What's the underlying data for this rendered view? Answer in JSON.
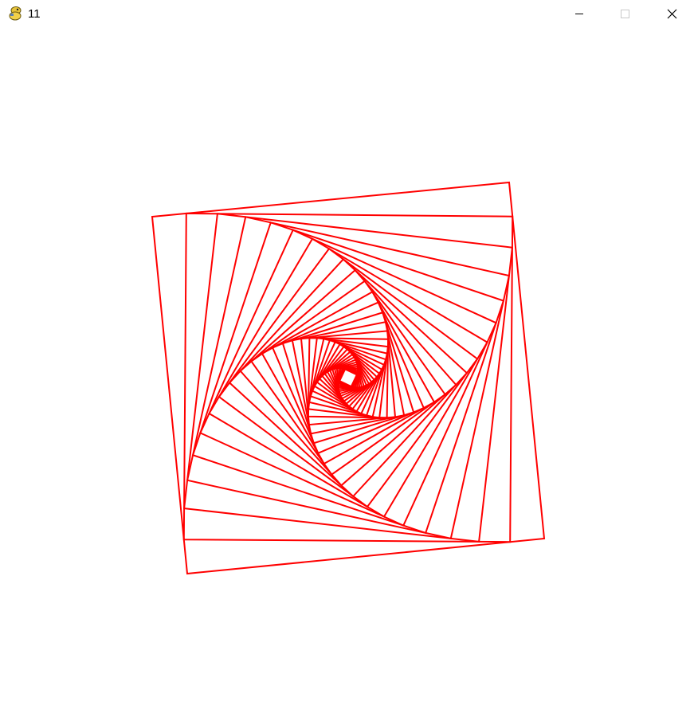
{
  "window": {
    "title": "11",
    "app_icon": "python-snake-icon",
    "controls": {
      "minimize": "minimize-icon",
      "maximize": "maximize-icon",
      "close": "close-icon"
    }
  },
  "drawing": {
    "stroke_color": "#ff0000",
    "background_color": "#ffffff",
    "shape": "nested-rotating-squares"
  }
}
